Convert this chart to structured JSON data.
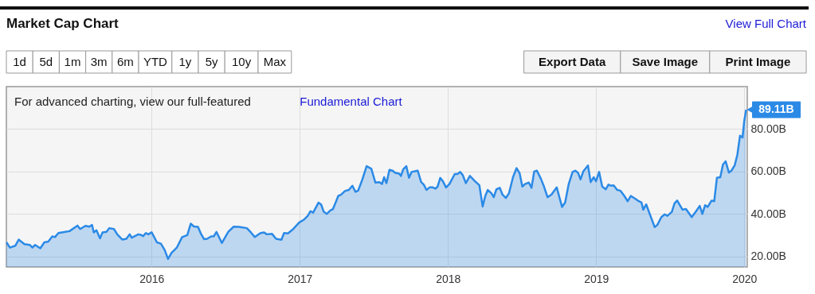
{
  "chart_data": {
    "type": "area",
    "title": "Market Cap Chart",
    "x": [
      2015.021,
      2015.044,
      2015.08,
      2015.103,
      2015.142,
      2015.178,
      2015.196,
      2015.214,
      2015.249,
      2015.276,
      2015.303,
      2015.33,
      2015.348,
      2015.371,
      2015.419,
      2015.446,
      2015.5,
      2015.518,
      2015.553,
      2015.58,
      2015.598,
      2015.61,
      2015.628,
      2015.652,
      2015.669,
      2015.696,
      2015.714,
      2015.746,
      2015.768,
      2015.803,
      2015.83,
      2015.852,
      2015.866,
      2015.911,
      2015.929,
      2015.943,
      2015.961,
      2015.979,
      2016.0,
      2016.036,
      2016.063,
      2016.089,
      2016.111,
      2016.134,
      2016.17,
      2016.206,
      2016.241,
      2016.264,
      2016.286,
      2016.313,
      2016.331,
      2016.354,
      2016.375,
      2016.402,
      2016.42,
      2016.438,
      2016.45,
      2016.474,
      2016.518,
      2016.554,
      2016.59,
      2016.643,
      2016.67,
      2016.697,
      2016.733,
      2016.759,
      2016.777,
      2016.813,
      2016.84,
      2016.876,
      2016.894,
      2016.92,
      2016.956,
      2016.997,
      2017.028,
      2017.054,
      2017.072,
      2017.09,
      2017.126,
      2017.144,
      2017.162,
      2017.183,
      2017.206,
      2017.224,
      2017.26,
      2017.278,
      2017.305,
      2017.331,
      2017.355,
      2017.376,
      2017.394,
      2017.421,
      2017.451,
      2017.483,
      2017.51,
      2017.537,
      2017.555,
      2017.569,
      2017.585,
      2017.605,
      2017.626,
      2017.644,
      2017.671,
      2017.683,
      2017.698,
      2017.719,
      2017.737,
      2017.755,
      2017.796,
      2017.819,
      2017.837,
      2017.855,
      2017.876,
      2017.898,
      2017.916,
      2017.93,
      2017.948,
      2017.966,
      2017.987,
      2018.01,
      2018.046,
      2018.064,
      2018.082,
      2018.1,
      2018.121,
      2018.148,
      2018.18,
      2018.212,
      2018.234,
      2018.252,
      2018.269,
      2018.293,
      2018.309,
      2018.327,
      2018.35,
      2018.368,
      2018.391,
      2018.412,
      2018.439,
      2018.463,
      2018.484,
      2018.502,
      2018.52,
      2018.546,
      2018.564,
      2018.582,
      2018.6,
      2018.627,
      2018.645,
      2018.672,
      2018.698,
      2018.734,
      2018.77,
      2018.791,
      2018.815,
      2018.841,
      2018.859,
      2018.877,
      2018.895,
      2018.913,
      2018.945,
      2018.963,
      2018.984,
      2018.999,
      2019.02,
      2019.041,
      2019.065,
      2019.083,
      2019.1,
      2019.118,
      2019.142,
      2019.163,
      2019.19,
      2019.213,
      2019.234,
      2019.261,
      2019.288,
      2019.306,
      2019.318,
      2019.338,
      2019.368,
      2019.395,
      2019.413,
      2019.44,
      2019.463,
      2019.481,
      2019.511,
      2019.529,
      2019.547,
      2019.583,
      2019.606,
      2019.645,
      2019.672,
      2019.699,
      2019.717,
      2019.735,
      2019.753,
      2019.779,
      2019.797,
      2019.815,
      2019.838,
      2019.856,
      2019.874,
      2019.896,
      2019.913,
      2019.935,
      2019.953,
      2019.971,
      2019.988,
      2019.999,
      2020.012
    ],
    "series": [
      {
        "color": "#2b8ae6",
        "values": [
          26.6,
          24.1,
          25.0,
          27.9,
          25.8,
          25.4,
          24.1,
          25.4,
          23.8,
          26.6,
          27.0,
          29.4,
          29.1,
          31.0,
          31.6,
          31.9,
          34.5,
          32.9,
          34.4,
          34.0,
          34.8,
          31.3,
          32.3,
          28.5,
          31.3,
          31.6,
          33.3,
          32.9,
          30.4,
          27.9,
          28.3,
          30.4,
          28.8,
          30.4,
          30.1,
          29.5,
          31.0,
          30.4,
          31.4,
          26.6,
          26.0,
          22.9,
          18.8,
          21.6,
          24.1,
          29.1,
          30.0,
          35.4,
          34.1,
          33.9,
          31.0,
          28.1,
          28.3,
          29.4,
          29.5,
          31.5,
          29.8,
          26.3,
          31.6,
          34.0,
          33.9,
          33.3,
          31.3,
          29.1,
          30.9,
          31.3,
          30.4,
          30.6,
          28.3,
          27.8,
          31.0,
          30.8,
          32.9,
          36.0,
          37.3,
          39.1,
          41.3,
          40.6,
          45.3,
          44.5,
          41.0,
          40.0,
          41.6,
          42.3,
          48.5,
          49.0,
          50.8,
          51.3,
          53.3,
          50.4,
          51.0,
          56.0,
          62.5,
          61.3,
          54.8,
          55.0,
          54.1,
          57.3,
          54.5,
          60.8,
          60.4,
          59.4,
          59.0,
          57.9,
          61.0,
          62.5,
          57.0,
          59.8,
          60.4,
          55.0,
          53.8,
          51.3,
          52.5,
          52.5,
          51.9,
          52.9,
          57.0,
          55.4,
          52.5,
          54.1,
          58.8,
          58.8,
          59.8,
          58.3,
          54.5,
          57.9,
          55.6,
          53.5,
          43.5,
          48.5,
          51.3,
          49.8,
          47.9,
          51.6,
          52.3,
          49.1,
          47.5,
          49.8,
          57.3,
          61.6,
          59.1,
          52.9,
          54.1,
          54.8,
          52.3,
          60.0,
          60.4,
          56.6,
          53.5,
          47.9,
          49.1,
          52.5,
          43.3,
          45.4,
          54.1,
          59.8,
          60.4,
          59.5,
          56.3,
          60.0,
          62.8,
          55.0,
          57.3,
          55.4,
          59.8,
          52.9,
          51.6,
          53.8,
          53.3,
          53.5,
          51.3,
          51.0,
          48.5,
          46.0,
          48.5,
          47.3,
          46.0,
          45.4,
          42.0,
          44.5,
          38.8,
          33.8,
          34.8,
          38.5,
          39.8,
          39.1,
          41.0,
          45.0,
          46.3,
          42.0,
          42.3,
          38.5,
          41.0,
          43.8,
          40.0,
          44.1,
          43.3,
          46.3,
          46.0,
          57.0,
          57.3,
          63.3,
          64.8,
          59.5,
          60.4,
          62.9,
          67.9,
          76.9,
          76.0,
          83.5,
          89.11
        ]
      }
    ],
    "xlim": [
      2015.02,
      2020.02
    ],
    "ylim": [
      15,
      100
    ],
    "xticks": [
      2016,
      2017,
      2018,
      2019,
      2020
    ],
    "yticks": [
      {
        "value": 20,
        "label": "20.00B"
      },
      {
        "value": 40,
        "label": "40.00B"
      },
      {
        "value": 60,
        "label": "60.00B"
      },
      {
        "value": 80,
        "label": "80.00B"
      }
    ],
    "grid": true,
    "annotations": [
      "View Full Chart",
      "1d",
      "5d",
      "1m",
      "3m",
      "6m",
      "YTD",
      "1y",
      "5y",
      "10y",
      "Max",
      "Export Data",
      "Save Image",
      "Print Image",
      "For advanced charting, view our full-featured",
      "Fundamental Chart",
      {
        "text": "89.11B",
        "x": 2020.012,
        "y": 89.11
      }
    ]
  }
}
